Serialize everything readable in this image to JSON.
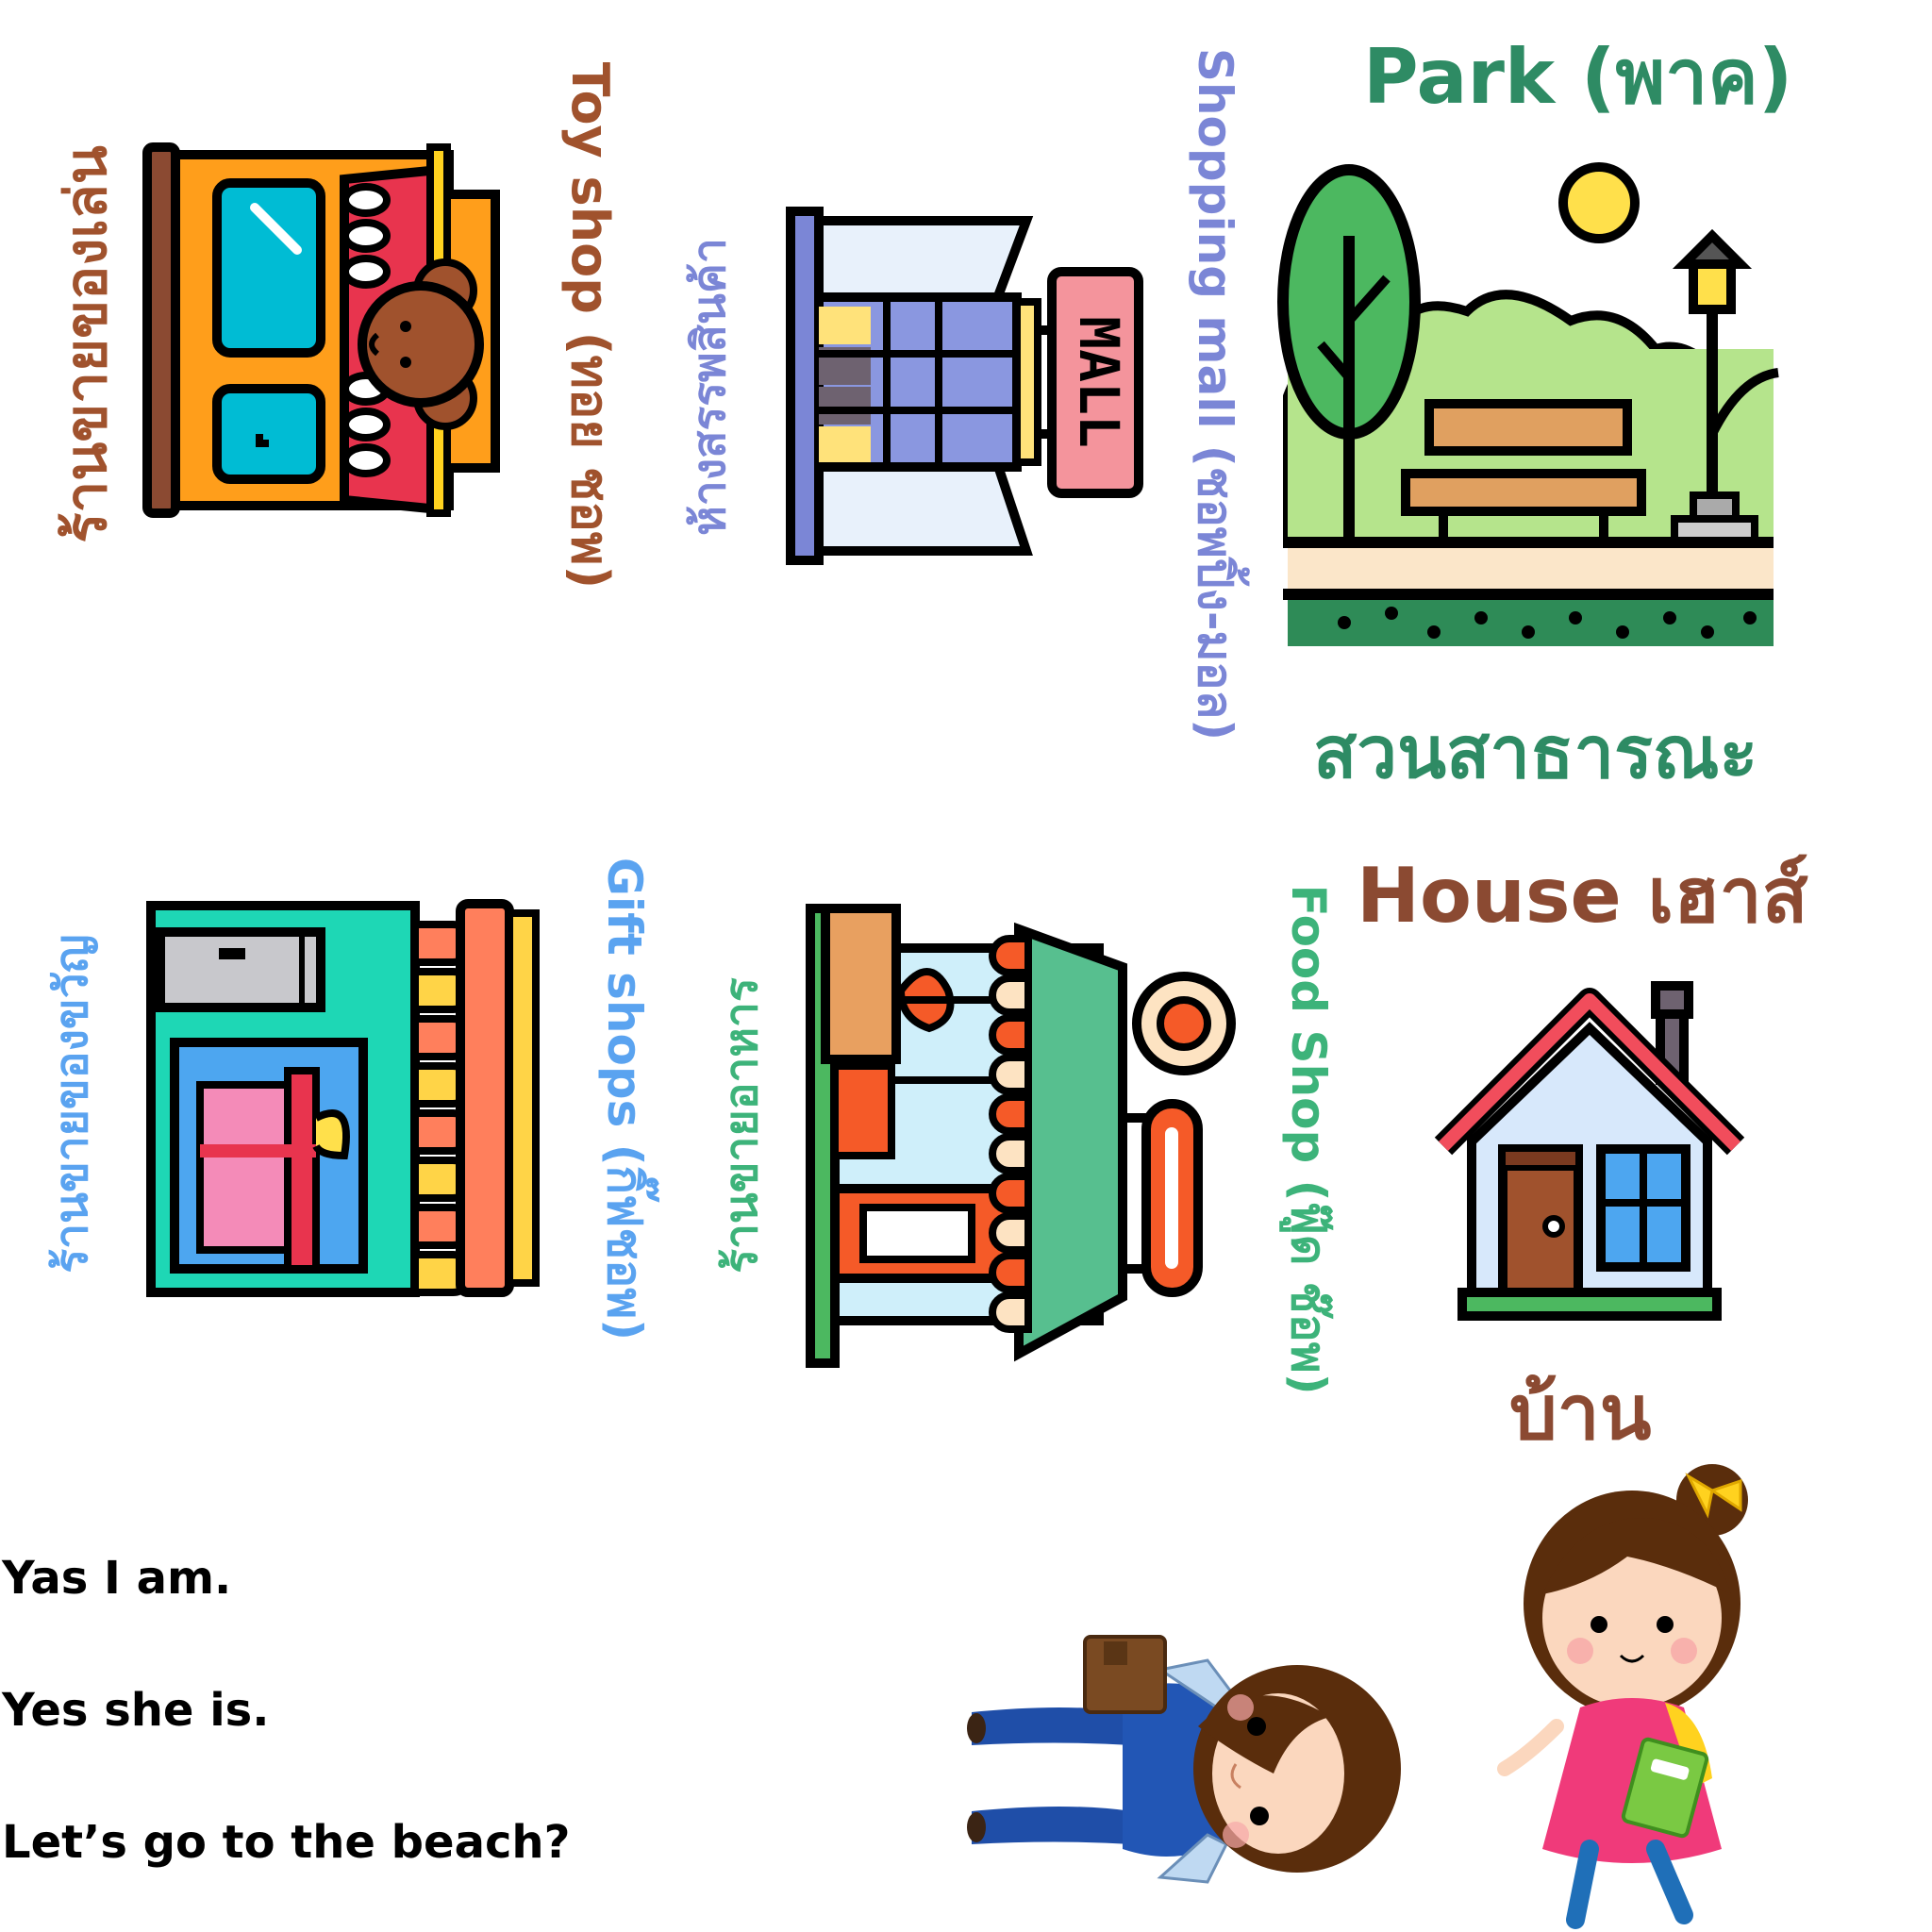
{
  "cards": {
    "toy_shop": {
      "english": "Toy shop (ทอย ชอพ)",
      "thai": "ร้านขายของเล่น",
      "color": "#A0522D"
    },
    "mall": {
      "english": "Shopping mall (ชอพปิ้ง-มอล)",
      "thai": "ห้างสรรพสินค้า",
      "sign": "MALL",
      "color": "#7B86D6"
    },
    "park": {
      "english": "Park (พาค)",
      "thai": "สวนสาธารณะ",
      "color": "#2E8B64"
    },
    "gift_shop": {
      "english": "Gift shops (กิ๊ฟชอพ)",
      "thai": "ร้านขายของขวัญ",
      "color": "#5AA3F0"
    },
    "food_shop": {
      "english": "Food Shop (ฟู๊ด ช๊อพ)",
      "thai": "ร้านขายอาหาร",
      "color": "#3DB37A"
    },
    "house": {
      "english": "House เฮาส์",
      "thai": "บ้าน",
      "color": "#8B4A32"
    }
  },
  "dialog": [
    "Yas I am.",
    "Yes she is.",
    "Let’s go to the beach?"
  ]
}
